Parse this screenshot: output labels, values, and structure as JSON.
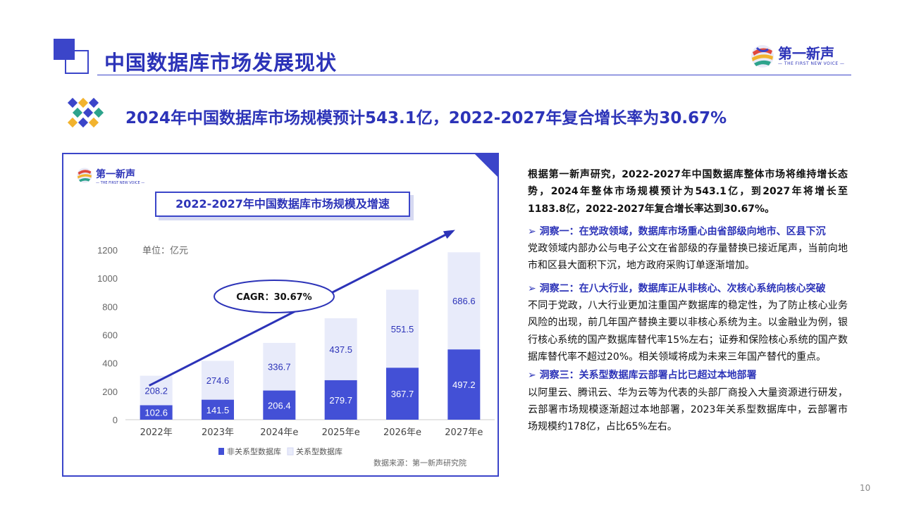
{
  "page": {
    "title": "中国数据库市场发展现状",
    "headline": "2024年中国数据库市场规模预计543.1亿，2022-2027年复合增长率为30.67%",
    "page_number": "10",
    "brand_name": "第一新声",
    "brand_sub": "— THE FIRST NEW VOICE —"
  },
  "chart_card": {
    "brand_name": "第一新声",
    "brand_sub": "— THE FIRST NEW VOICE —",
    "source": "数据来源：第一新声研究院"
  },
  "chart_data": {
    "type": "bar",
    "stacked": true,
    "title": "2022-2027年中国数据库市场规模及增速",
    "unit_label": "单位：亿元",
    "categories": [
      "2022年",
      "2023年",
      "2024年e",
      "2025年e",
      "2026年e",
      "2027年e"
    ],
    "series": [
      {
        "name": "非关系型数据库",
        "values": [
          102.6,
          141.5,
          206.4,
          279.7,
          367.7,
          497.2
        ],
        "color": "#4350d6"
      },
      {
        "name": "关系型数据库",
        "values": [
          208.2,
          274.6,
          336.7,
          437.5,
          551.5,
          686.6
        ],
        "color": "#e8ebfa"
      }
    ],
    "y_ticks": [
      "0",
      "200",
      "400",
      "600",
      "800",
      "1000",
      "1200"
    ],
    "ylim": [
      0,
      1200
    ],
    "annotation": "CAGR：30.67%",
    "legend_position": "bottom"
  },
  "text": {
    "intro": "根据第一新声研究，2022-2027年中国数据库整体市场将维持增长态势，2024年整体市场规模预计为543.1亿，到2027年将增长至1183.8亿，2022-2027年复合增长率达到30.67%。",
    "insights": [
      {
        "title": "洞察一：在党政领域，数据库市场重心由省部级向地市、区县下沉",
        "body": "党政领域内部办公与电子公文在省部级的存量替换已接近尾声，当前向地市和区县大面积下沉，地方政府采购订单逐渐增加。"
      },
      {
        "title": "洞察二：在八大行业，数据库正从非核心、次核心系统向核心突破",
        "body": "不同于党政，八大行业更加注重国产数据库的稳定性，为了防止核心业务风险的出现，前几年国产替换主要以非核心系统为主。以金融业为例，银行核心系统的国产数据库替代率15%左右；证券和保险核心系统的国产数据库替代率不超过20%。相关领域将成为未来三年国产替代的重点。"
      },
      {
        "title": "洞察三：关系型数据库云部署占比已超过本地部署",
        "body": "以阿里云、腾讯云、华为云等为代表的头部厂商投入大量资源进行研发，云部署市场规模逐渐超过本地部署，2023年关系型数据库中，云部署市场规模约178亿，占比65%左右。"
      }
    ]
  },
  "colors": {
    "primary": "#2c33b8",
    "bar_dark": "#4350d6",
    "bar_light": "#e8ebfa",
    "accent": "#3b45c9"
  }
}
